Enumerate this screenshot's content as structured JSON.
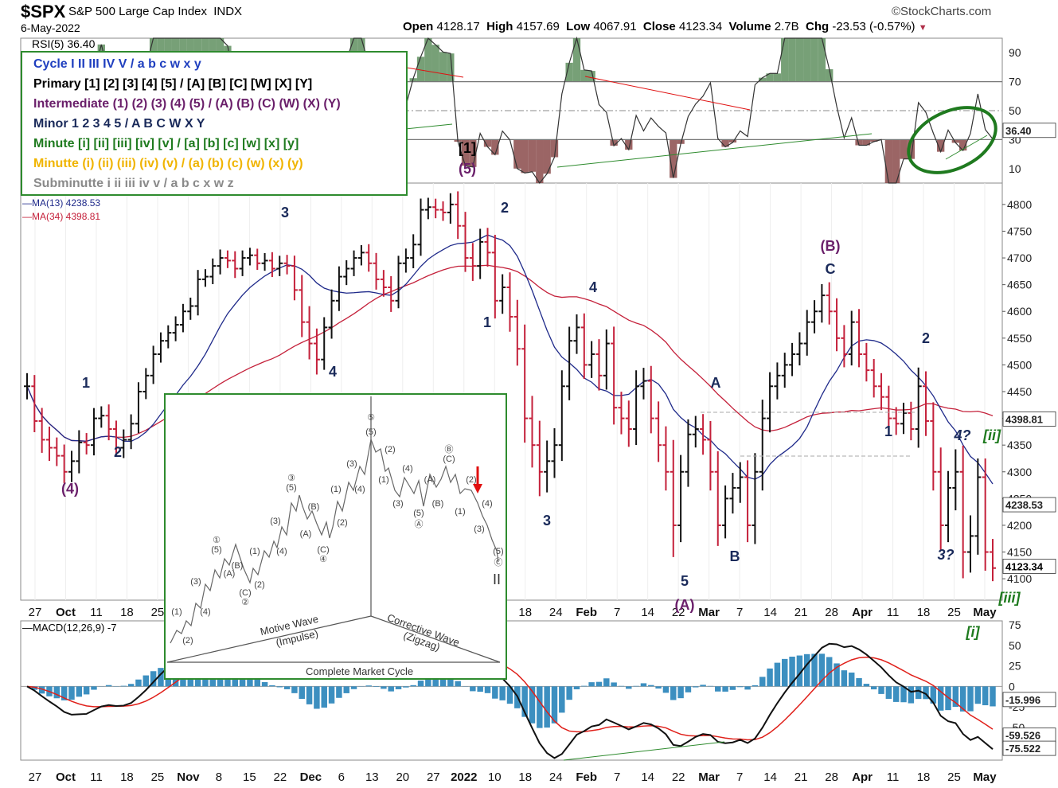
{
  "header": {
    "symbol": "$SPX",
    "name": "S&P 500 Large Cap Index",
    "exchange": "INDX",
    "source": "©StockCharts.com",
    "date": "6-May-2022",
    "open_label": "Open",
    "open": "4128.17",
    "high_label": "High",
    "high": "4157.69",
    "low_label": "Low",
    "low": "4067.91",
    "close_label": "Close",
    "close": "4123.34",
    "volume_label": "Volume",
    "volume": "2.7B",
    "chg_label": "Chg",
    "chg": "-23.53 (-0.57%)"
  },
  "rsi_label": "RSI(5) 36.40",
  "ma_labels": {
    "ma13": "MA(13) 4238.53",
    "ma34": "MA(34) 4398.81"
  },
  "macd_label": "MACD(12,26,9) -7",
  "legend": {
    "cycle": "Cycle I II III IV V / a b c w x y",
    "primary": "Primary [1] [2] [3] [4] [5] / [A] [B] [C] [W] [X] [Y]",
    "intermediate": "Intermediate (1) (2) (3) (4) (5) / (A) (B) (C) (W) (X) (Y)",
    "minor": "Minor 1 2 3 4 5 / A B C W X Y",
    "minute": "Minute [i] [ii] [iii] [iv] [v] / [a] [b] [c] [w] [x] [y]",
    "minutte": "Minutte (i) (ii) (iii) (iv) (v) / (a) (b) (c) (w) (x) (y)",
    "subminutte": "Subminutte i ii iii iv v / a b c x w z",
    "colors": {
      "cycle": "#1f3fbf",
      "primary": "#000000",
      "intermediate": "#6a1f6a",
      "minor": "#1a2a5a",
      "minute": "#1e7a1e",
      "minutte": "#f0b400",
      "subminutte": "#8a8a8a"
    }
  },
  "inset": {
    "motive": "Motive Wave",
    "impulse": "(Impulse)",
    "corrective": "Corrective Wave",
    "zigzag": "(Zigzag)",
    "cycle": "Complete Market Cycle"
  },
  "chart_data": {
    "type": "ohlc",
    "price_axis": {
      "ticks": [
        4100,
        4150,
        4200,
        4250,
        4300,
        4350,
        4400,
        4450,
        4500,
        4550,
        4600,
        4650,
        4700,
        4750,
        4800
      ],
      "range": [
        4060,
        4840
      ]
    },
    "rsi_axis": {
      "ticks": [
        10,
        30,
        50,
        70,
        90
      ],
      "range": [
        0,
        100
      ]
    },
    "macd_axis": {
      "ticks": [
        -75,
        -50,
        -25,
        0,
        25,
        50,
        75
      ],
      "range": [
        -90,
        80
      ]
    },
    "x_tick_labels": [
      "27",
      "Oct",
      "11",
      "18",
      "25",
      "Nov",
      "8",
      "15",
      "22",
      "Dec",
      "6",
      "13",
      "20",
      "27",
      "2022",
      "10",
      "18",
      "24",
      "Feb",
      "7",
      "14",
      "22",
      "Mar",
      "7",
      "14",
      "21",
      "28",
      "Apr",
      "11",
      "18",
      "25",
      "May"
    ],
    "price_tag_labels": [
      "4398.81",
      "4238.53",
      "4123.34"
    ],
    "rsi_tag_label": "36.40",
    "macd_tag_labels": [
      "-15.996",
      "-59.526",
      "-75.522"
    ],
    "closes": [
      4460,
      4395,
      4360,
      4345,
      4330,
      4300,
      4320,
      4355,
      4350,
      4400,
      4405,
      4380,
      4345,
      4360,
      4390,
      4450,
      4480,
      4520,
      4545,
      4560,
      4575,
      4600,
      4610,
      4660,
      4665,
      4685,
      4700,
      4695,
      4680,
      4700,
      4705,
      4690,
      4695,
      4680,
      4690,
      4685,
      4640,
      4580,
      4540,
      4510,
      4570,
      4620,
      4665,
      4680,
      4700,
      4710,
      4690,
      4660,
      4645,
      4620,
      4690,
      4700,
      4725,
      4790,
      4795,
      4790,
      4785,
      4800,
      4760,
      4700,
      4685,
      4730,
      4710,
      4620,
      4645,
      4590,
      4530,
      4400,
      4350,
      4300,
      4320,
      4350,
      4460,
      4545,
      4570,
      4500,
      4520,
      4480,
      4540,
      4420,
      4400,
      4380,
      4460,
      4470,
      4400,
      4350,
      4300,
      4200,
      4300,
      4370,
      4380,
      4360,
      4300,
      4200,
      4250,
      4270,
      4290,
      4200,
      4300,
      4400,
      4460,
      4480,
      4500,
      4520,
      4540,
      4580,
      4600,
      4630,
      4600,
      4550,
      4520,
      4580,
      4520,
      4490,
      4460,
      4440,
      4400,
      4390,
      4410,
      4380,
      4460,
      4395,
      4300,
      4200,
      4270,
      4300,
      4150,
      4180,
      4290,
      4150,
      4120
    ],
    "ranges": [
      70,
      60,
      70,
      70,
      55,
      60,
      55,
      65,
      50,
      55,
      50,
      60,
      45,
      55,
      50,
      50,
      40,
      45,
      45,
      40,
      45,
      40,
      45,
      50,
      40,
      40,
      45,
      40,
      50,
      40,
      40,
      35,
      40,
      45,
      40,
      45,
      55,
      80,
      85,
      80,
      55,
      60,
      55,
      45,
      40,
      40,
      45,
      55,
      50,
      60,
      40,
      50,
      55,
      60,
      50,
      45,
      45,
      60,
      70,
      75,
      80,
      70,
      75,
      95,
      70,
      80,
      90,
      130,
      120,
      130,
      110,
      90,
      85,
      75,
      70,
      75,
      70,
      80,
      75,
      90,
      85,
      95,
      85,
      70,
      80,
      90,
      100,
      170,
      90,
      80,
      70,
      80,
      100,
      110,
      70,
      80,
      80,
      90,
      100,
      100,
      75,
      70,
      65,
      60,
      60,
      65,
      60,
      60,
      70,
      70,
      70,
      60,
      70,
      60,
      60,
      70,
      60,
      60,
      55,
      60,
      100,
      80,
      100,
      130,
      90,
      120,
      140,
      110,
      100,
      100,
      70
    ],
    "waves": [
      "1",
      "2",
      "3",
      "4",
      "(4)",
      "[1]",
      "(5)",
      "2",
      "1",
      "3",
      "4",
      "5",
      "(A)",
      "A",
      "B",
      "(B)",
      "C",
      "1",
      "2",
      "4?",
      "[ii]",
      "3?",
      "[iii]",
      "[i]"
    ]
  }
}
